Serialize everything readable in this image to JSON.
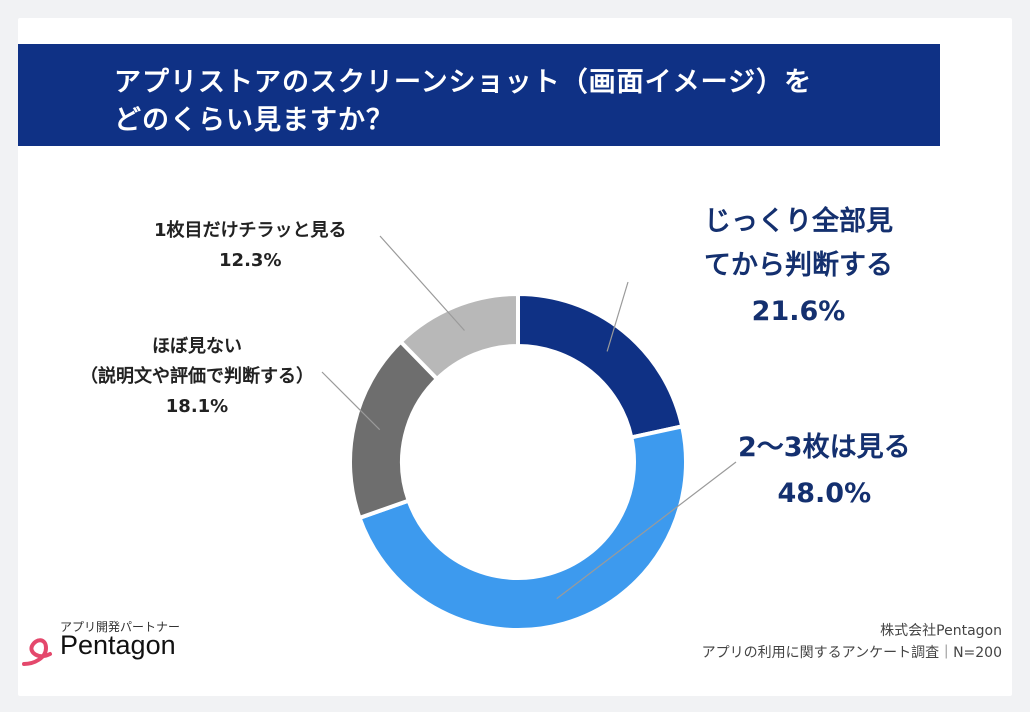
{
  "title": {
    "line1": "アプリストアのスクリーンショット（画面イメージ）を",
    "line2": "どのくらい見ますか？"
  },
  "chart_data": {
    "type": "pie",
    "donut": true,
    "slices": [
      {
        "label_lines": [
          "じっくり全部見",
          "てから判断する"
        ],
        "value": 21.6,
        "value_label": "21.6%",
        "color": "#0f3185"
      },
      {
        "label_lines": [
          "2〜3枚は見る"
        ],
        "value": 48.0,
        "value_label": "48.0%",
        "color": "#3d9aee"
      },
      {
        "label_lines": [
          "ほぼ見ない",
          "（説明文や評価で判断する）"
        ],
        "value": 18.1,
        "value_label": "18.1%",
        "color": "#6e6e6e"
      },
      {
        "label_lines": [
          "1枚目だけチラッと見る"
        ],
        "value": 12.3,
        "value_label": "12.3%",
        "color": "#b8b8b8"
      }
    ]
  },
  "logo": {
    "tagline": "アプリ開発パートナー",
    "name": "Pentagon"
  },
  "source": {
    "company": "株式会社Pentagon",
    "survey": "アプリの利用に関するアンケート調査｜N=200"
  },
  "colors": {
    "title_bar": "#0f3185",
    "label_big": "#14306f",
    "logo_mark": "#e4486c"
  }
}
